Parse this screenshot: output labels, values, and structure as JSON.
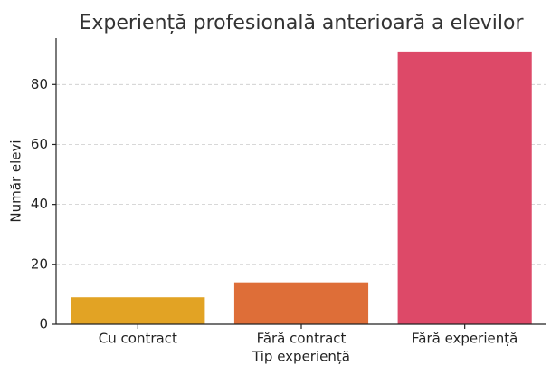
{
  "chart_data": {
    "type": "bar",
    "title": "Experiență profesională anterioară a elevilor",
    "x_label": "Tip experiență",
    "y_label": "Număr elevi",
    "categories": [
      "Cu contract",
      "Fără contract",
      "Fără experiență"
    ],
    "values": [
      9,
      14,
      91
    ],
    "colors": [
      "#e2a324",
      "#de6e38",
      "#dd4968"
    ],
    "ylim": [
      0,
      95.5
    ],
    "yticks": [
      0,
      20,
      40,
      60,
      80
    ],
    "grid": true
  }
}
